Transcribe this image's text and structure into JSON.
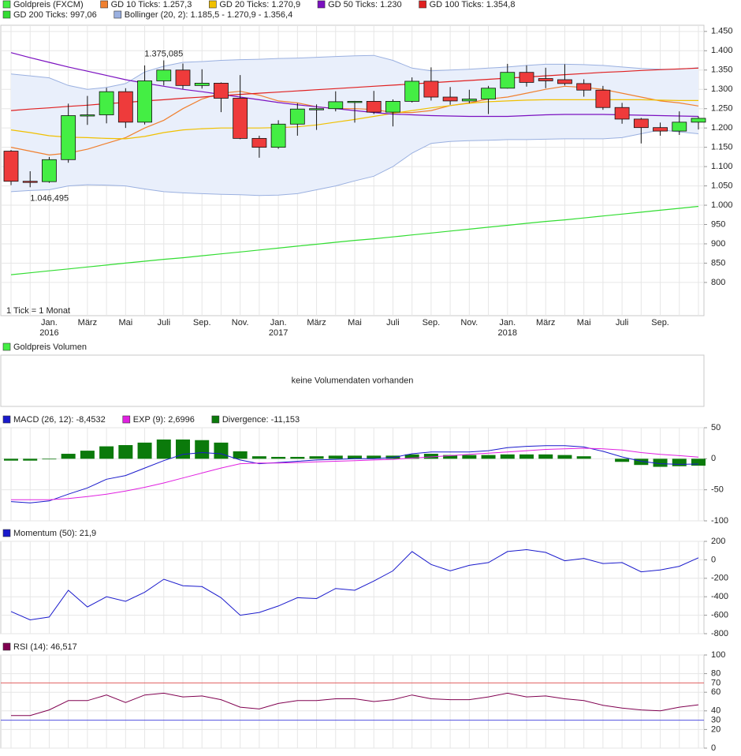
{
  "chart_data": [
    {
      "type": "candlestick",
      "name": "Goldpreis (FXCM)",
      "up_color": "#44ee44",
      "down_color": "#ee3b3b",
      "categories": [
        null,
        null,
        "Jan.",
        null,
        "März",
        null,
        "Mai",
        null,
        "Juli",
        null,
        "Sep.",
        null,
        "Nov.",
        null,
        "Jan.",
        null,
        "März",
        null,
        "Mai",
        null,
        "Juli",
        null,
        "Sep.",
        null,
        "Nov.",
        null,
        "Jan.",
        null,
        "März",
        null,
        "Mai",
        null,
        "Juli",
        null,
        "Sep.",
        null,
        null
      ],
      "years": [
        "2016",
        "2017",
        "2018"
      ],
      "open": [
        1140,
        1062,
        1061,
        1118,
        1232,
        1234,
        1294,
        1215,
        1322,
        1350,
        1310,
        1316,
        1277,
        1173,
        1150,
        1210,
        1249,
        1250,
        1268,
        1269,
        1241,
        1269,
        1321,
        1280,
        1270,
        1275,
        1303,
        1344,
        1328,
        1325,
        1315,
        1298,
        1253,
        1223,
        1201,
        1192,
        1215
      ],
      "high": [
        1143,
        1088,
        1125,
        1263,
        1283,
        1304,
        1303,
        1362,
        1375.085,
        1367,
        1352,
        1318,
        1337,
        1180,
        1220,
        1264,
        1261,
        1295,
        1270,
        1296,
        1274,
        1331,
        1357,
        1306,
        1299,
        1309,
        1366,
        1362,
        1356,
        1365,
        1326,
        1309,
        1265,
        1226,
        1214,
        1243,
        1230
      ],
      "low": [
        1052,
        1046.495,
        1058,
        1110,
        1208,
        1212,
        1200,
        1209,
        1310,
        1301,
        1302,
        1241,
        1171,
        1123,
        1146,
        1180,
        1195,
        1243,
        1214,
        1236,
        1204,
        1266,
        1271,
        1260,
        1264,
        1236,
        1302,
        1307,
        1303,
        1310,
        1281,
        1247,
        1211,
        1160,
        1180,
        1182,
        1196
      ],
      "close": [
        1062,
        1061,
        1118,
        1232,
        1234,
        1294,
        1215,
        1322,
        1350,
        1310,
        1316,
        1277,
        1173,
        1150,
        1210,
        1249,
        1250,
        1268,
        1269,
        1241,
        1269,
        1321,
        1280,
        1270,
        1275,
        1303,
        1344,
        1318,
        1322,
        1315,
        1298,
        1253,
        1223,
        1201,
        1192,
        1215,
        1225
      ],
      "bollinger": {
        "name": "Bollinger (20, 2): 1.185,5 - 1.270,9 - 1.356,4",
        "color": "#9ab0e0",
        "fill": "#e9effb",
        "upper": [
          1340,
          1335,
          1330,
          1310,
          1300,
          1305,
          1315,
          1345,
          1360,
          1370,
          1372,
          1375,
          1377,
          1378,
          1380,
          1381,
          1383,
          1385,
          1387,
          1388,
          1375,
          1355,
          1348,
          1350,
          1352,
          1355,
          1358,
          1362,
          1365,
          1365,
          1364,
          1362,
          1358,
          1354,
          1352,
          1352,
          1356
        ],
        "lower": [
          1035,
          1038,
          1040,
          1050,
          1053,
          1052,
          1050,
          1042,
          1035,
          1032,
          1030,
          1028,
          1027,
          1025,
          1026,
          1030,
          1040,
          1050,
          1063,
          1075,
          1100,
          1135,
          1160,
          1165,
          1167,
          1168,
          1170,
          1170,
          1171,
          1172,
          1172,
          1172,
          1175,
          1185,
          1195,
          1190,
          1185
        ]
      },
      "series": [
        {
          "name": "GD 10 Ticks: 1.257,3",
          "color": "#f08030",
          "values": [
            1150,
            1140,
            1130,
            1135,
            1145,
            1160,
            1175,
            1200,
            1220,
            1250,
            1275,
            1290,
            1295,
            1285,
            1270,
            1265,
            1255,
            1250,
            1250,
            1248,
            1240,
            1240,
            1245,
            1258,
            1265,
            1275,
            1280,
            1290,
            1300,
            1308,
            1305,
            1300,
            1290,
            1280,
            1270,
            1265,
            1257
          ]
        },
        {
          "name": "GD 20 Ticks: 1.270,9",
          "color": "#f0c000",
          "values": [
            1195,
            1188,
            1180,
            1176,
            1175,
            1173,
            1172,
            1178,
            1188,
            1195,
            1198,
            1200,
            1200,
            1200,
            1201,
            1203,
            1208,
            1215,
            1222,
            1230,
            1238,
            1245,
            1252,
            1258,
            1264,
            1268,
            1270,
            1272,
            1273,
            1273,
            1273,
            1273,
            1273,
            1273,
            1272,
            1271,
            1271
          ]
        },
        {
          "name": "GD 50 Ticks: 1.230",
          "color": "#7b10c0",
          "values": [
            1395,
            1382,
            1370,
            1358,
            1347,
            1336,
            1325,
            1316,
            1308,
            1300,
            1294,
            1287,
            1280,
            1273,
            1266,
            1260,
            1255,
            1250,
            1245,
            1240,
            1236,
            1234,
            1232,
            1231,
            1230,
            1230,
            1230,
            1232,
            1234,
            1235,
            1235,
            1235,
            1234,
            1233,
            1232,
            1231,
            1230
          ]
        },
        {
          "name": "GD 100 Ticks: 1.354,8",
          "color": "#e02020",
          "values": [
            1245,
            1249,
            1252,
            1256,
            1259,
            1263,
            1266,
            1270,
            1273,
            1277,
            1280,
            1284,
            1287,
            1290,
            1293,
            1296,
            1299,
            1302,
            1305,
            1308,
            1311,
            1314,
            1317,
            1320,
            1323,
            1326,
            1329,
            1332,
            1335,
            1338,
            1341,
            1344,
            1346,
            1349,
            1351,
            1353,
            1355
          ]
        },
        {
          "name": "GD 200 Ticks: 997,06",
          "color": "#33dd33",
          "values": [
            820,
            825,
            830,
            835,
            840,
            845,
            850,
            855,
            860,
            864,
            869,
            874,
            879,
            884,
            889,
            894,
            899,
            904,
            909,
            913,
            918,
            923,
            928,
            933,
            938,
            943,
            948,
            953,
            958,
            962,
            967,
            972,
            977,
            982,
            987,
            992,
            997
          ]
        }
      ],
      "annotations": [
        {
          "value": 1375.085,
          "label": "1.375,085",
          "at": "high"
        },
        {
          "value": 1046.495,
          "label": "1.046,495",
          "at": "low"
        }
      ],
      "note": "1 Tick = 1 Monat",
      "ylim": [
        714,
        1466
      ],
      "yticks": [
        {
          "value": 1450,
          "label": "1.450"
        },
        {
          "value": 1400,
          "label": "1.400"
        },
        {
          "value": 1350,
          "label": "1.350"
        },
        {
          "value": 1300,
          "label": "1.300"
        },
        {
          "value": 1250,
          "label": "1.250"
        },
        {
          "value": 1200,
          "label": "1.200"
        },
        {
          "value": 1150,
          "label": "1.150"
        },
        {
          "value": 1100,
          "label": "1.100"
        },
        {
          "value": 1050,
          "label": "1.050"
        },
        {
          "value": 1000,
          "label": "1.000"
        },
        950,
        900,
        850,
        800
      ],
      "grid": true
    },
    {
      "type": "bar",
      "series": [
        {
          "name": "Goldpreis Volumen",
          "color": "#44ee44",
          "values": []
        }
      ],
      "message": "keine Volumendaten vorhanden"
    },
    {
      "type": "line",
      "ylim": [
        -100,
        50
      ],
      "yticks": [
        50,
        0,
        -50,
        -100
      ],
      "grid": true,
      "series": [
        {
          "name": "MACD (26, 12): -8,4532",
          "color": "#1a1acc",
          "values": [
            -69,
            -71,
            -68,
            -57,
            -47,
            -33,
            -27,
            -15,
            -3,
            7,
            10,
            8,
            -2,
            -8,
            -6,
            -4,
            -2,
            -1,
            0,
            0,
            2,
            8,
            11,
            11,
            11,
            13,
            18,
            20,
            21,
            21,
            19,
            12,
            3,
            -4,
            -8,
            -9,
            -8.4532
          ]
        },
        {
          "name": "EXP (9): 2,6996",
          "color": "#e020e0",
          "values": [
            -66,
            -66,
            -66,
            -64,
            -61,
            -57,
            -52,
            -46,
            -39,
            -31,
            -23,
            -15,
            -8,
            -7,
            -7,
            -6,
            -5,
            -4,
            -3,
            -2,
            -1,
            1,
            3,
            5,
            7,
            9,
            11,
            13,
            15,
            16,
            17,
            16,
            14,
            10,
            7,
            5,
            2.6996
          ]
        },
        {
          "name": "Divergence: -11,153",
          "color": "#0b7a0b",
          "kind": "bar",
          "values": [
            -3,
            -3,
            -1,
            8,
            13,
            20,
            22,
            26,
            31,
            31,
            30,
            26,
            12,
            4,
            3,
            3,
            4,
            5,
            5,
            5,
            5,
            7,
            8,
            6,
            6,
            6,
            7,
            7,
            7,
            6,
            4,
            0,
            -5,
            -10,
            -13,
            -12,
            -11.153
          ]
        }
      ]
    },
    {
      "type": "line",
      "ylim": [
        -800,
        200
      ],
      "yticks": [
        200,
        0,
        -200,
        -400,
        -600,
        -800
      ],
      "grid": true,
      "series": [
        {
          "name": "Momentum (50): 21,9",
          "color": "#1a1acc",
          "values": [
            -560,
            -650,
            -620,
            -330,
            -510,
            -400,
            -450,
            -350,
            -210,
            -280,
            -290,
            -410,
            -600,
            -570,
            -500,
            -410,
            -420,
            -310,
            -330,
            -230,
            -120,
            90,
            -50,
            -120,
            -60,
            -30,
            90,
            110,
            80,
            -10,
            15,
            -40,
            -30,
            -130,
            -110,
            -70,
            21.9
          ]
        }
      ]
    },
    {
      "type": "line",
      "ylim": [
        0,
        100
      ],
      "yticks": [
        100,
        80,
        60,
        40,
        20,
        0
      ],
      "grid": true,
      "reference_lines": [
        {
          "value": 70,
          "color": "#e06060"
        },
        {
          "value": 30,
          "color": "#5050e0"
        }
      ],
      "series": [
        {
          "name": "RSI (14): 46,517",
          "color": "#800050",
          "values": [
            35,
            35,
            41,
            51,
            51,
            57,
            49,
            57,
            59,
            55,
            56,
            52,
            44,
            42,
            48,
            51,
            51,
            53,
            53,
            50,
            52,
            57,
            53,
            52,
            52,
            55,
            59,
            55,
            56,
            53,
            51,
            46,
            43,
            41,
            40,
            44,
            46.517
          ]
        }
      ]
    }
  ]
}
